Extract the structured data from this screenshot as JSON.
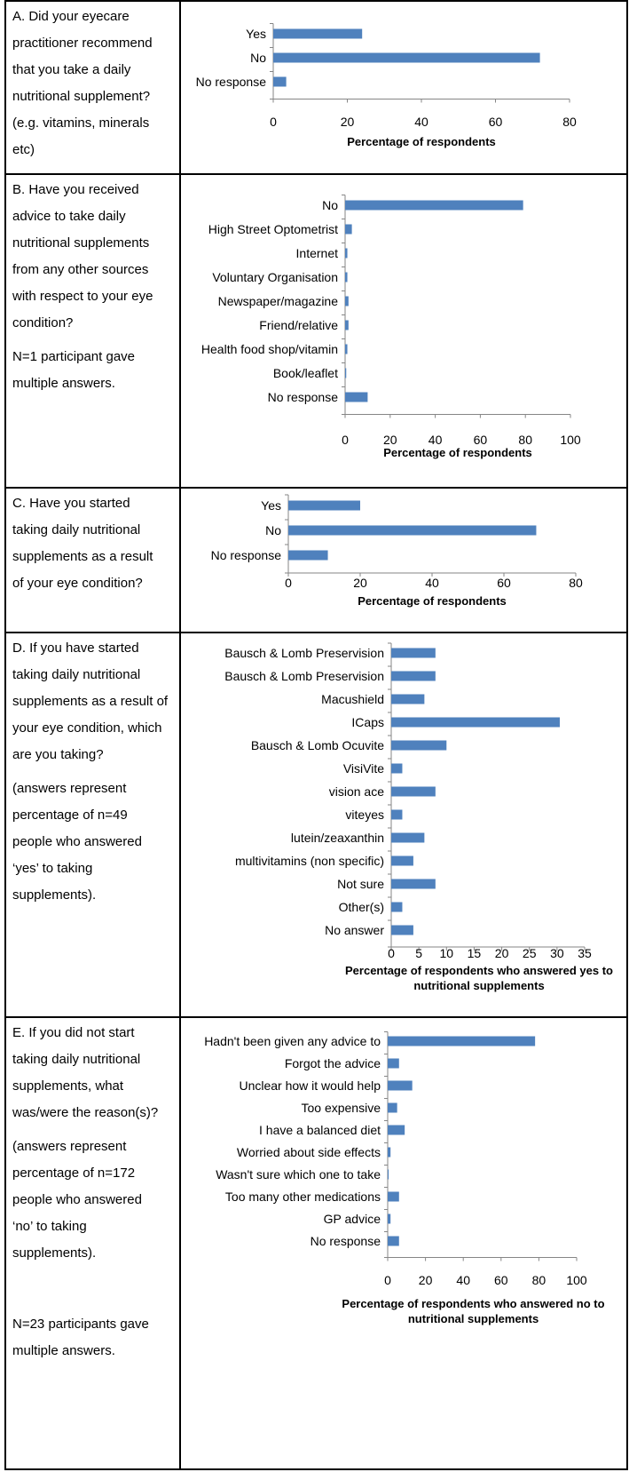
{
  "questions": {
    "A": {
      "text": "A. Did your eyecare practitioner recommend that you take a daily nutritional supplement? (e.g. vitamins, minerals etc)",
      "notes": []
    },
    "B": {
      "text": "B. Have you received advice to take daily nutritional supplements from any other sources with respect to your eye condition?",
      "notes": [
        "N=1 participant gave multiple answers."
      ]
    },
    "C": {
      "text": "C. Have you started taking daily nutritional supplements as a result of your eye condition?",
      "notes": []
    },
    "D": {
      "text": "D. If you have started taking daily nutritional supplements as a result of your eye condition, which are you taking?",
      "notes": [
        "(answers represent percentage of n=49 people who answered ‘yes’ to taking supplements)."
      ]
    },
    "E": {
      "text": "E. If you did not start taking daily nutritional supplements, what was/were the reason(s)?",
      "notes": [
        "(answers represent percentage of n=172 people who answered ‘no’ to taking supplements).",
        "N=23 participants gave multiple answers."
      ]
    }
  },
  "colors": {
    "bar": "#4F81BD",
    "axis": "#868686",
    "text": "#000000"
  },
  "chart_data": [
    {
      "type": "bar",
      "orientation": "horizontal",
      "categories": [
        "Yes",
        "No",
        "No response"
      ],
      "values": [
        24,
        72,
        3.5
      ],
      "xlabel": "Percentage of respondents",
      "ylabel": "",
      "xlim": [
        0,
        80
      ],
      "xticks": [
        0,
        20,
        40,
        60,
        80
      ]
    },
    {
      "type": "bar",
      "orientation": "horizontal",
      "categories": [
        "No",
        "High Street Optometrist",
        "Internet",
        "Voluntary Organisation",
        "Newspaper/magazine",
        "Friend/relative",
        "Health food shop/vitamin",
        "Book/leaflet",
        "No response"
      ],
      "values": [
        79,
        3,
        1,
        1,
        1.5,
        1.5,
        1,
        0.5,
        10
      ],
      "xlabel": "Percentage of respondents",
      "ylabel": "",
      "xlim": [
        0,
        100
      ],
      "xticks": [
        0,
        20,
        40,
        60,
        80,
        100
      ]
    },
    {
      "type": "bar",
      "orientation": "horizontal",
      "categories": [
        "Yes",
        "No",
        "No response"
      ],
      "values": [
        20,
        69,
        11
      ],
      "xlabel": "Percentage of respondents",
      "ylabel": "",
      "xlim": [
        0,
        80
      ],
      "xticks": [
        0,
        20,
        40,
        60,
        80
      ]
    },
    {
      "type": "bar",
      "orientation": "horizontal",
      "categories": [
        "Bausch & Lomb Preservision",
        "Bausch & Lomb Preservision",
        "Macushield",
        "ICaps",
        "Bausch & Lomb Ocuvite",
        "VisiVite",
        "vision ace",
        "viteyes",
        "lutein/zeaxanthin",
        "multivitamins (non specific)",
        "Not sure",
        "Other(s)",
        "No answer"
      ],
      "values": [
        8,
        8,
        6,
        30.5,
        10,
        2,
        8,
        2,
        6,
        4,
        8,
        2,
        4
      ],
      "xlabel": "Percentage of respondents who answered yes to nutritional supplements",
      "ylabel": "",
      "xlim": [
        0,
        35
      ],
      "xticks": [
        0,
        5,
        10,
        15,
        20,
        25,
        30,
        35
      ]
    },
    {
      "type": "bar",
      "orientation": "horizontal",
      "categories": [
        "Hadn't been given any advice to",
        "Forgot the advice",
        "Unclear how it would help",
        "Too expensive",
        "I have a balanced diet",
        "Worried about side effects",
        "Wasn't sure which one to take",
        "Too many other medications",
        "GP advice",
        "No response"
      ],
      "values": [
        78,
        6,
        13,
        5,
        9,
        1.5,
        0.5,
        6,
        1.5,
        6
      ],
      "xlabel": "Percentage of respondents who answered no to nutritional supplements",
      "ylabel": "",
      "xlim": [
        0,
        100
      ],
      "xticks": [
        0,
        20,
        40,
        60,
        80,
        100
      ]
    }
  ]
}
